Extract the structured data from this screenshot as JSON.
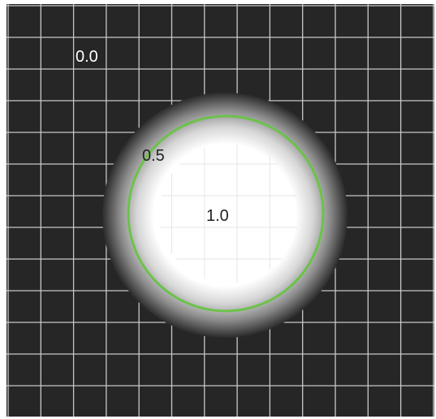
{
  "diagram": {
    "labels": {
      "outer": "0.0",
      "mid": "0.5",
      "inner": "1.0"
    },
    "colors": {
      "background": "#262626",
      "grid": "#c8c8c8",
      "contour": "#6cc24a",
      "center": "#ffffff",
      "outer_label": "#ffffff",
      "mid_label": "#222222",
      "inner_label": "#222222"
    },
    "values": {
      "outer": 0.0,
      "mid": 0.5,
      "inner": 1.0
    }
  }
}
